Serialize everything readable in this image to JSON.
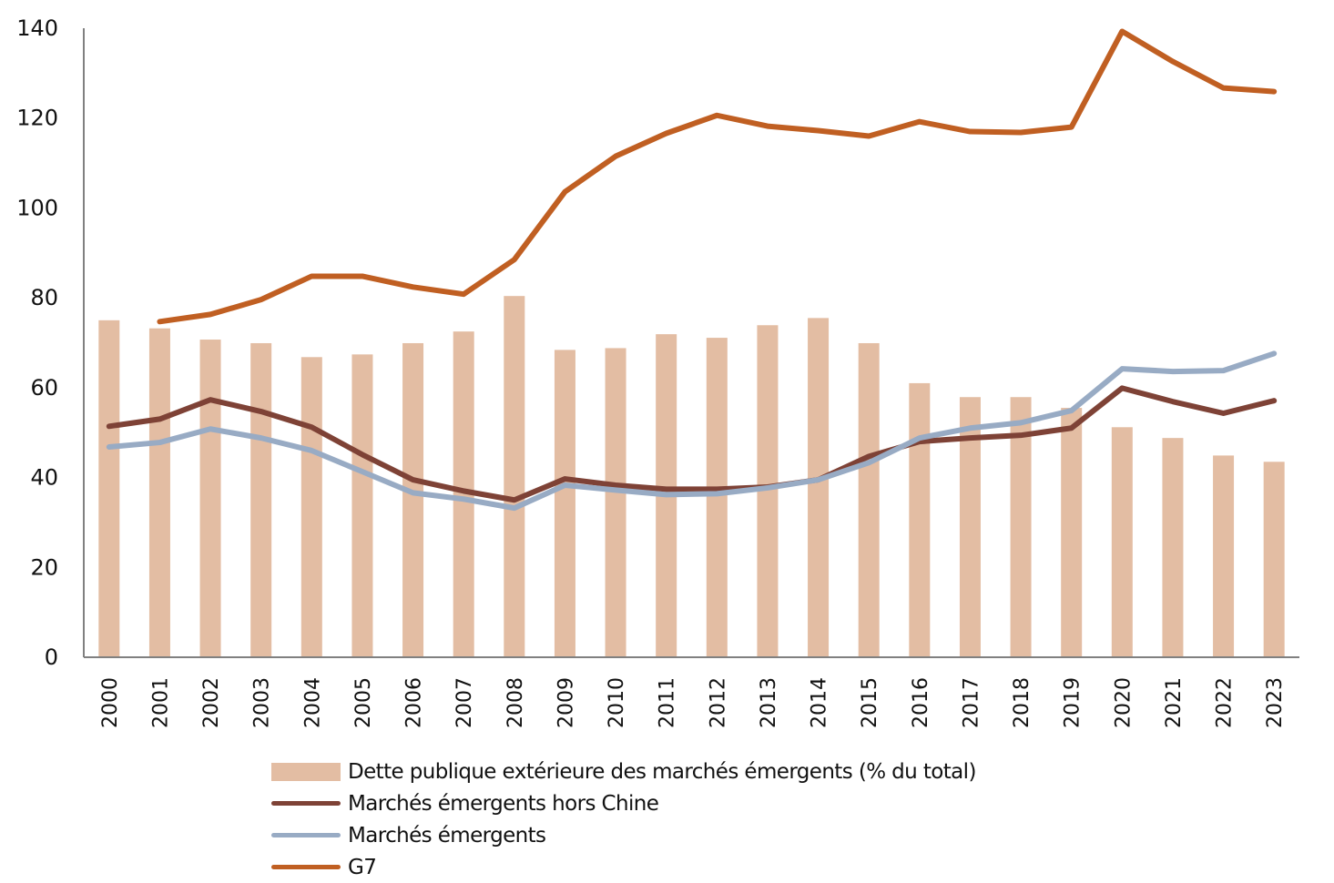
{
  "chart_data": {
    "type": "bar",
    "title": "",
    "xlabel": "",
    "ylabel": "",
    "ylim": [
      0,
      140
    ],
    "yticks": [
      0,
      20,
      40,
      60,
      80,
      100,
      120,
      140
    ],
    "grid": false,
    "legend_position": "bottom",
    "categories": [
      "2000",
      "2001",
      "2002",
      "2003",
      "2004",
      "2005",
      "2006",
      "2007",
      "2008",
      "2009",
      "2010",
      "2011",
      "2012",
      "2013",
      "2014",
      "2015",
      "2016",
      "2017",
      "2018",
      "2019",
      "2020",
      "2021",
      "2022",
      "2023"
    ],
    "series": [
      {
        "name": "Dette publique extérieure des marchés émergents (% du total)",
        "type": "bar",
        "color": "#e3bda3",
        "values": [
          75.0,
          73.2,
          70.7,
          69.9,
          66.8,
          67.4,
          69.9,
          72.5,
          80.4,
          68.4,
          68.8,
          71.9,
          71.1,
          73.9,
          75.5,
          69.9,
          61.0,
          57.9,
          57.9,
          55.5,
          51.2,
          48.8,
          44.9,
          43.5
        ]
      },
      {
        "name": "Marchés émergents hors Chine",
        "type": "line",
        "color": "#7e4236",
        "values": [
          51.4,
          53.0,
          57.3,
          54.7,
          51.2,
          45.1,
          39.5,
          37.0,
          35.0,
          39.7,
          38.3,
          37.4,
          37.4,
          37.9,
          39.5,
          44.7,
          48.0,
          48.8,
          49.4,
          51.0,
          59.9,
          56.9,
          54.3,
          57.1
        ]
      },
      {
        "name": "Marchés émergents",
        "type": "line",
        "color": "#98abc4",
        "values": [
          46.8,
          47.8,
          50.8,
          48.8,
          46.0,
          41.3,
          36.6,
          35.2,
          33.2,
          38.3,
          37.2,
          36.2,
          36.4,
          37.7,
          39.5,
          43.3,
          48.8,
          51.0,
          52.2,
          54.9,
          64.2,
          63.6,
          63.8,
          67.6
        ]
      },
      {
        "name": "G7",
        "type": "line",
        "color": "#c05f22",
        "values": [
          null,
          74.7,
          76.3,
          79.6,
          84.8,
          84.8,
          82.4,
          80.8,
          88.5,
          103.6,
          111.5,
          116.6,
          120.6,
          118.2,
          117.2,
          116.0,
          119.2,
          117.0,
          116.8,
          118.0,
          139.3,
          132.6,
          126.7,
          125.9
        ]
      }
    ]
  },
  "legend": {
    "items": [
      {
        "label": "Dette publique extérieure des marchés émergents (% du total)",
        "kind": "bar",
        "color": "#e3bda3"
      },
      {
        "label": "Marchés émergents hors Chine",
        "kind": "line",
        "color": "#7e4236"
      },
      {
        "label": "Marchés émergents",
        "kind": "line",
        "color": "#98abc4"
      },
      {
        "label": "G7",
        "kind": "line",
        "color": "#c05f22"
      }
    ]
  },
  "axis_color": "#808080"
}
